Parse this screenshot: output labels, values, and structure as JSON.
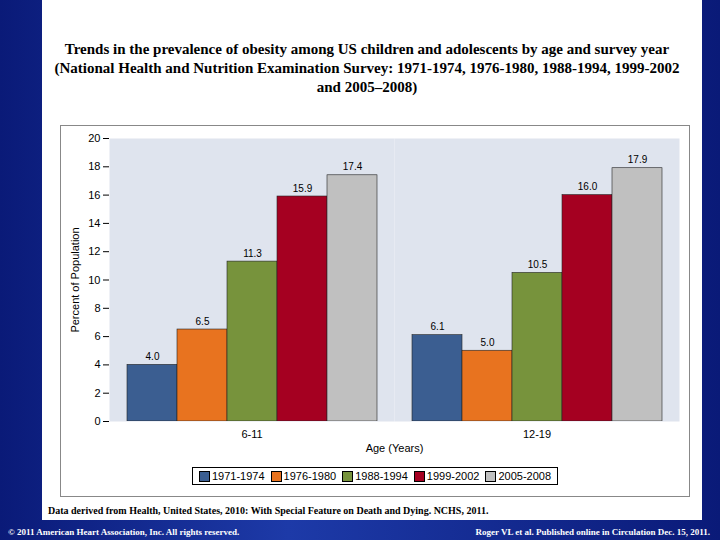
{
  "chart_data": {
    "type": "bar",
    "title": "Trends in the prevalence of obesity among US children and adolescents by age and survey year (National Health and Nutrition Examination Survey: 1971-1974, 1976-1980, 1988-1994, 1999-2002 and 2005–2008)",
    "x_label": "Age (Years)",
    "y_label": "Percent of Population",
    "categories": [
      "6-11",
      "12-19"
    ],
    "series": [
      {
        "name": "1971-1974",
        "color": "#3b5e91",
        "values": [
          4.0,
          6.1
        ],
        "value_labels": [
          "4.0",
          "6.1"
        ]
      },
      {
        "name": "1976-1980",
        "color": "#e8731f",
        "values": [
          6.5,
          5.0
        ],
        "value_labels": [
          "6.5",
          "5.0"
        ]
      },
      {
        "name": "1988-1994",
        "color": "#77933c",
        "values": [
          11.3,
          10.5
        ],
        "value_labels": [
          "11.3",
          "10.5"
        ]
      },
      {
        "name": "1999-2002",
        "color": "#a50021",
        "values": [
          15.9,
          16.0
        ],
        "value_labels": [
          "15.9",
          "16.0"
        ]
      },
      {
        "name": "2005-2008",
        "color": "#c0c0c0",
        "values": [
          17.4,
          17.9
        ],
        "value_labels": [
          "17.4",
          "17.9"
        ]
      }
    ],
    "ylim": [
      0,
      20
    ],
    "yticks": [
      0,
      2,
      4,
      6,
      8,
      10,
      12,
      14,
      16,
      18,
      20
    ],
    "grid": false,
    "data_labels": true,
    "legend": "bottom",
    "annotations": [
      "Data derived from Health, United States, 2010: With Special Feature on Death and Dying. NCHS, 2011.",
      "© 2011 American Heart Association, Inc. All rights reserved.",
      "Roger VL et al. Published online in Circulation Dec. 15, 2011."
    ]
  }
}
